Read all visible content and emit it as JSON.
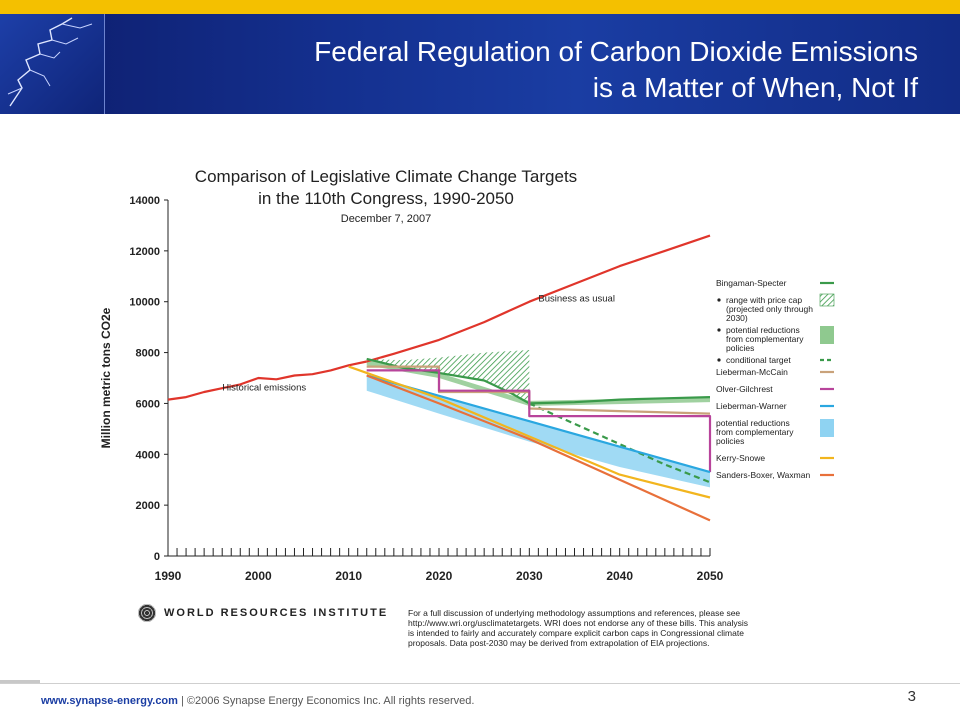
{
  "slide": {
    "title_line1": "Federal Regulation of Carbon Dioxide Emissions",
    "title_line2": "is a Matter of When, Not If",
    "footer_url": "www.synapse-energy.com",
    "footer_sep": "|",
    "footer_copyright": "©2006 Synapse Energy Economics Inc. All rights reserved.",
    "page_number": "3",
    "source_org": "WORLD RESOURCES INSTITUTE",
    "source_note": "For a full discussion of underlying methodology assumptions and references, please see http://www.wri.org/usclimatetargets. WRI does not endorse any of these bills. This analysis is intended to fairly and accurately compare explicit carbon caps in Congressional climate proposals. Data post-2030 may be derived from extrapolation of EIA projections."
  },
  "colors": {
    "header_blue": "#14308f",
    "accent_yellow": "#f4c000",
    "business_as_usual": "#e0352b",
    "bingaman": "#3a9a4a",
    "lieberman_mccain": "#c9a27a",
    "olver": "#b8449b",
    "lieberman_warner": "#2aa7e0",
    "kerry_snowe": "#f2b51e",
    "sanders": "#e8703a"
  },
  "chart_data": {
    "type": "line",
    "title": "Comparison of Legislative Climate Change Targets",
    "title_line2": "in the 110th Congress, 1990-2050",
    "subtitle": "December 7, 2007",
    "ylabel": "Million metric tons CO2e",
    "xlabel": "",
    "xlim": [
      1990,
      2050
    ],
    "ylim": [
      0,
      14000
    ],
    "x_ticks": [
      1990,
      2000,
      2010,
      2020,
      2030,
      2040,
      2050
    ],
    "y_ticks": [
      0,
      2000,
      4000,
      6000,
      8000,
      10000,
      12000,
      14000
    ],
    "annotations": [
      {
        "text": "Business as usual",
        "x": 2031,
        "y": 10000
      },
      {
        "text": "Historical emissions",
        "x": 1996,
        "y": 6500
      }
    ],
    "legend": {
      "placement": "right",
      "entries": [
        {
          "label": "Bingaman-Specter",
          "style": "line",
          "color": "#3a9a4a"
        },
        {
          "label": "range with price cap (projected only through 2030)",
          "style": "hatch",
          "color": "#3a9a4a",
          "bullet": true
        },
        {
          "label": "potential reductions from complementary policies",
          "style": "box",
          "color": "#8fc98f",
          "bullet": true
        },
        {
          "label": "conditional target",
          "style": "dashed",
          "color": "#3a9a4a",
          "bullet": true
        },
        {
          "label": "Lieberman-McCain",
          "style": "line",
          "color": "#c9a27a"
        },
        {
          "label": "Olver-Gilchrest",
          "style": "line",
          "color": "#b8449b"
        },
        {
          "label": "Lieberman-Warner",
          "style": "line",
          "color": "#2aa7e0"
        },
        {
          "label": "potential reductions from complementary policies",
          "style": "box",
          "color": "#8fd3f2"
        },
        {
          "label": "Kerry-Snowe",
          "style": "line",
          "color": "#f2b51e"
        },
        {
          "label": "Sanders-Boxer, Waxman",
          "style": "line",
          "color": "#e8703a"
        }
      ]
    },
    "series": [
      {
        "name": "Historical emissions",
        "color": "#e0352b",
        "points": [
          [
            1990,
            6150
          ],
          [
            1992,
            6250
          ],
          [
            1994,
            6450
          ],
          [
            1996,
            6600
          ],
          [
            1998,
            6750
          ],
          [
            2000,
            7000
          ],
          [
            2002,
            6950
          ],
          [
            2004,
            7100
          ],
          [
            2006,
            7150
          ],
          [
            2008,
            7300
          ],
          [
            2010,
            7500
          ],
          [
            2012,
            7650
          ]
        ]
      },
      {
        "name": "Business as usual",
        "color": "#e0352b",
        "points": [
          [
            2012,
            7650
          ],
          [
            2015,
            7950
          ],
          [
            2020,
            8500
          ],
          [
            2025,
            9200
          ],
          [
            2030,
            10000
          ],
          [
            2035,
            10700
          ],
          [
            2040,
            11400
          ],
          [
            2045,
            12000
          ],
          [
            2050,
            12600
          ]
        ]
      },
      {
        "name": "Bingaman-Specter",
        "color": "#3a9a4a",
        "points": [
          [
            2012,
            7750
          ],
          [
            2016,
            7400
          ],
          [
            2020,
            7200
          ],
          [
            2025,
            6900
          ],
          [
            2028,
            6400
          ],
          [
            2030,
            6000
          ],
          [
            2035,
            6050
          ],
          [
            2040,
            6150
          ],
          [
            2045,
            6200
          ],
          [
            2050,
            6250
          ]
        ]
      },
      {
        "name": "Bingaman-Specter conditional target",
        "color": "#3a9a4a",
        "dashed": true,
        "points": [
          [
            2030,
            6000
          ],
          [
            2035,
            5200
          ],
          [
            2040,
            4400
          ],
          [
            2045,
            3600
          ],
          [
            2050,
            2900
          ]
        ]
      },
      {
        "name": "Lieberman-McCain",
        "color": "#c9a27a",
        "points": [
          [
            2012,
            7450
          ],
          [
            2020,
            7450
          ],
          [
            2020,
            6450
          ],
          [
            2030,
            6450
          ],
          [
            2030,
            5800
          ],
          [
            2040,
            5700
          ],
          [
            2050,
            5600
          ]
        ]
      },
      {
        "name": "Olver-Gilchrest",
        "color": "#b8449b",
        "points": [
          [
            2012,
            7300
          ],
          [
            2020,
            7300
          ],
          [
            2020,
            6500
          ],
          [
            2030,
            6500
          ],
          [
            2030,
            5500
          ],
          [
            2040,
            5500
          ],
          [
            2050,
            5500
          ],
          [
            2050,
            3300
          ]
        ]
      },
      {
        "name": "Lieberman-Warner",
        "color": "#2aa7e0",
        "points": [
          [
            2012,
            7100
          ],
          [
            2020,
            6300
          ],
          [
            2030,
            5300
          ],
          [
            2040,
            4300
          ],
          [
            2050,
            3300
          ]
        ]
      },
      {
        "name": "Kerry-Snowe",
        "color": "#f2b51e",
        "points": [
          [
            2010,
            7450
          ],
          [
            2020,
            6200
          ],
          [
            2030,
            4700
          ],
          [
            2040,
            3200
          ],
          [
            2050,
            2300
          ]
        ]
      },
      {
        "name": "Sanders-Boxer, Waxman",
        "color": "#e8703a",
        "points": [
          [
            2012,
            7100
          ],
          [
            2020,
            6000
          ],
          [
            2030,
            4600
          ],
          [
            2040,
            3000
          ],
          [
            2050,
            1400
          ]
        ]
      }
    ],
    "bands": [
      {
        "name": "Bingaman-Specter range with price cap",
        "color": "#3a9a4a",
        "style": "hatch",
        "upper": [
          [
            2012,
            7750
          ],
          [
            2016,
            7700
          ],
          [
            2020,
            7800
          ],
          [
            2025,
            8000
          ],
          [
            2030,
            8100
          ]
        ],
        "lower": [
          [
            2012,
            7750
          ],
          [
            2016,
            7400
          ],
          [
            2020,
            7200
          ],
          [
            2025,
            6900
          ],
          [
            2030,
            6000
          ]
        ]
      },
      {
        "name": "Bingaman-Specter potential reductions from complementary policies",
        "color": "#8fc98f",
        "style": "fill",
        "upper": [
          [
            2012,
            7700
          ],
          [
            2020,
            7200
          ],
          [
            2030,
            6100
          ],
          [
            2050,
            6250
          ]
        ],
        "lower": [
          [
            2012,
            7500
          ],
          [
            2020,
            7000
          ],
          [
            2030,
            5900
          ],
          [
            2050,
            6050
          ]
        ]
      },
      {
        "name": "Lieberman-Warner potential reductions from complementary policies",
        "color": "#8fd3f2",
        "style": "fill",
        "upper": [
          [
            2012,
            7100
          ],
          [
            2020,
            6300
          ],
          [
            2030,
            5300
          ],
          [
            2040,
            4300
          ],
          [
            2050,
            3300
          ]
        ],
        "lower": [
          [
            2012,
            6500
          ],
          [
            2020,
            5600
          ],
          [
            2030,
            4500
          ],
          [
            2040,
            3500
          ],
          [
            2050,
            2700
          ]
        ]
      }
    ]
  }
}
